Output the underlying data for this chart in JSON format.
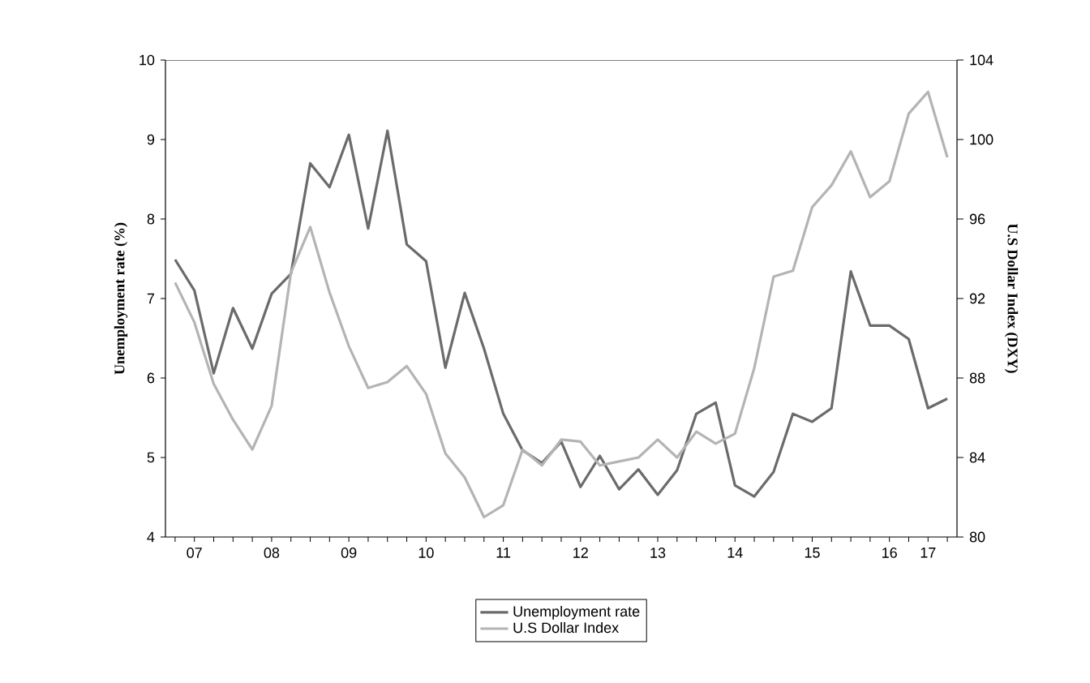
{
  "chart_data": {
    "type": "line",
    "ylabel": "Unemployment rate (%)",
    "y2label": "U.S Dollar Index (DXY)",
    "categories": [
      null,
      "07",
      null,
      null,
      null,
      "08",
      null,
      null,
      null,
      "09",
      null,
      null,
      null,
      "10",
      null,
      null,
      null,
      "11",
      null,
      null,
      null,
      "12",
      null,
      null,
      null,
      "13",
      null,
      null,
      null,
      "14",
      null,
      null,
      null,
      "15",
      null,
      null,
      null,
      "16",
      null,
      "17",
      null
    ],
    "ylim": [
      4,
      10
    ],
    "yticks": [
      4,
      5,
      6,
      7,
      8,
      9,
      10
    ],
    "y2lim": [
      80,
      104
    ],
    "y2ticks": [
      80,
      84,
      88,
      92,
      96,
      100,
      104
    ],
    "legend": "bottom",
    "marker": "none",
    "line_style": "solid",
    "series": [
      {
        "name": "Unemployment rate",
        "color": "#6b6b6b",
        "axis": "y",
        "values": [
          7.49,
          7.1,
          6.06,
          6.88,
          6.37,
          7.06,
          7.31,
          8.7,
          8.4,
          9.06,
          7.88,
          9.11,
          7.68,
          7.47,
          6.13,
          7.07,
          6.37,
          5.55,
          5.09,
          4.93,
          5.2,
          4.63,
          5.02,
          4.6,
          4.85,
          4.53,
          4.84,
          5.55,
          5.69,
          4.65,
          4.51,
          4.82,
          5.55,
          5.45,
          5.62,
          7.34,
          6.66,
          6.66,
          6.49,
          5.62,
          5.74
        ]
      },
      {
        "name": "U.S Dollar Index",
        "color": "#b4b4b4",
        "axis": "y2",
        "values": [
          92.8,
          90.8,
          87.7,
          85.9,
          84.4,
          86.6,
          93.3,
          95.6,
          92.3,
          89.6,
          87.5,
          87.8,
          88.6,
          87.2,
          84.2,
          83.0,
          81.0,
          81.6,
          84.4,
          83.6,
          84.9,
          84.8,
          83.6,
          83.8,
          84.0,
          84.9,
          84.0,
          85.3,
          84.7,
          85.2,
          88.5,
          93.1,
          93.4,
          96.6,
          97.7,
          99.4,
          97.1,
          97.9,
          101.3,
          102.4,
          99.1
        ]
      }
    ]
  }
}
